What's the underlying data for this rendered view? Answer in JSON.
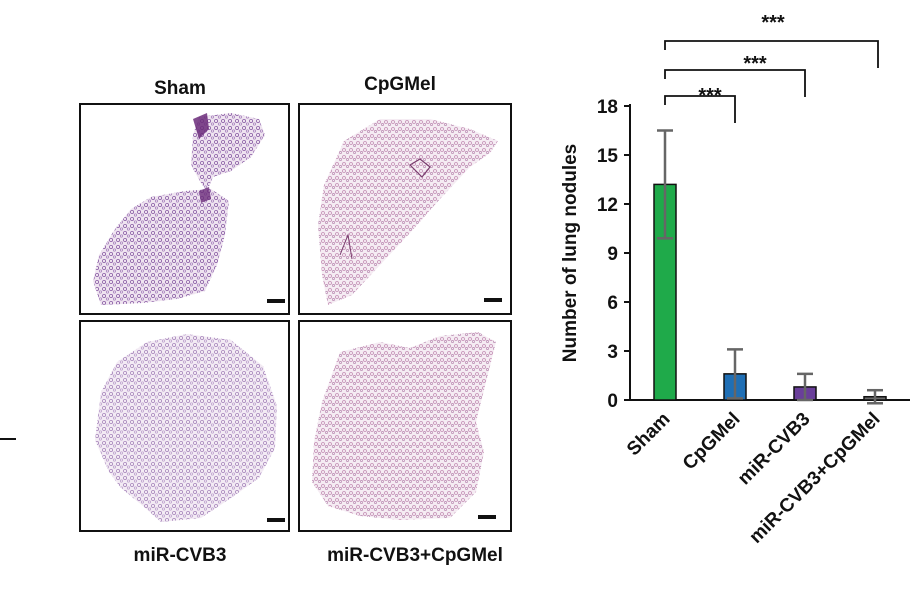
{
  "panels": {
    "top_left": "Sham",
    "top_right": "CpGMel",
    "bottom_left": "miR-CVB3",
    "bottom_right": "miR-CVB3+CpGMel"
  },
  "chart_data": {
    "type": "bar",
    "categories": [
      "Sham",
      "CpGMel",
      "miR-CVB3",
      "miR-CVB3+CpGMel"
    ],
    "values": [
      13.2,
      1.6,
      0.8,
      0.2
    ],
    "errors": [
      3.3,
      1.5,
      0.8,
      0.4
    ],
    "colors": [
      "#1faa4a",
      "#1f6fb5",
      "#6a3f9a",
      "#6d6d6d"
    ],
    "ylabel": "Number of lung nodules",
    "ylim": [
      0,
      18
    ],
    "yticks": [
      0,
      3,
      6,
      9,
      12,
      15,
      18
    ],
    "grid": false,
    "significance": [
      {
        "from": "Sham",
        "to": "CpGMel",
        "label": "***"
      },
      {
        "from": "Sham",
        "to": "miR-CVB3",
        "label": "***"
      },
      {
        "from": "Sham",
        "to": "miR-CVB3+CpGMel",
        "label": "***"
      }
    ]
  }
}
